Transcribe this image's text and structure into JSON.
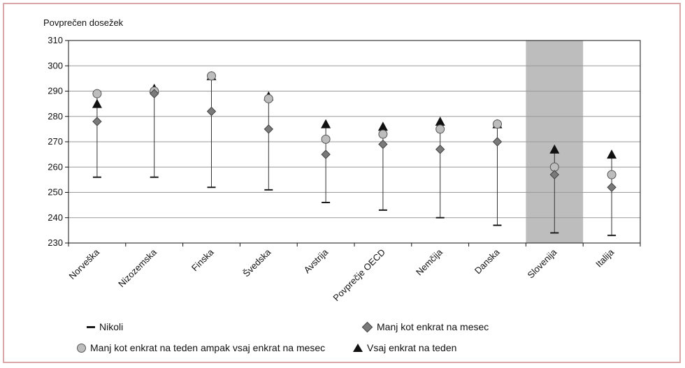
{
  "chart_data": {
    "type": "scatter",
    "title": "",
    "ylabel": "Povprečen dosežek",
    "xlabel": "",
    "ylim": [
      230,
      310
    ],
    "yticks": [
      230,
      240,
      250,
      260,
      270,
      280,
      290,
      300,
      310
    ],
    "grid": true,
    "legend_position": "bottom",
    "highlight_category": "Slovenija",
    "categories": [
      "Norveška",
      "Nizozemska",
      "Finska",
      "Švedska",
      "Avstrija",
      "Povprečje OECD",
      "Nemčija",
      "Danska",
      "Slovenija",
      "Italija"
    ],
    "series": [
      {
        "name": "Nikoli",
        "marker": "dash",
        "color": "#1a1a1a",
        "values": [
          256,
          256,
          252,
          251,
          246,
          243,
          240,
          237,
          234,
          233
        ]
      },
      {
        "name": "Manj kot enkrat na mesec",
        "marker": "diamond",
        "color": "#7a7a7a",
        "values": [
          278,
          289,
          282,
          275,
          265,
          269,
          267,
          270,
          257,
          252
        ]
      },
      {
        "name": "Manj kot enkrat na teden ampak vsaj enkrat na mesec",
        "marker": "circle",
        "color": "#bdbdbd",
        "values": [
          289,
          290,
          296,
          287,
          271,
          273,
          275,
          277,
          260,
          257
        ]
      },
      {
        "name": "Vsaj enkrat na teden",
        "marker": "triangle",
        "color": "#111111",
        "values": [
          285,
          291,
          296,
          288,
          277,
          276,
          278,
          277,
          267,
          265
        ]
      }
    ]
  }
}
